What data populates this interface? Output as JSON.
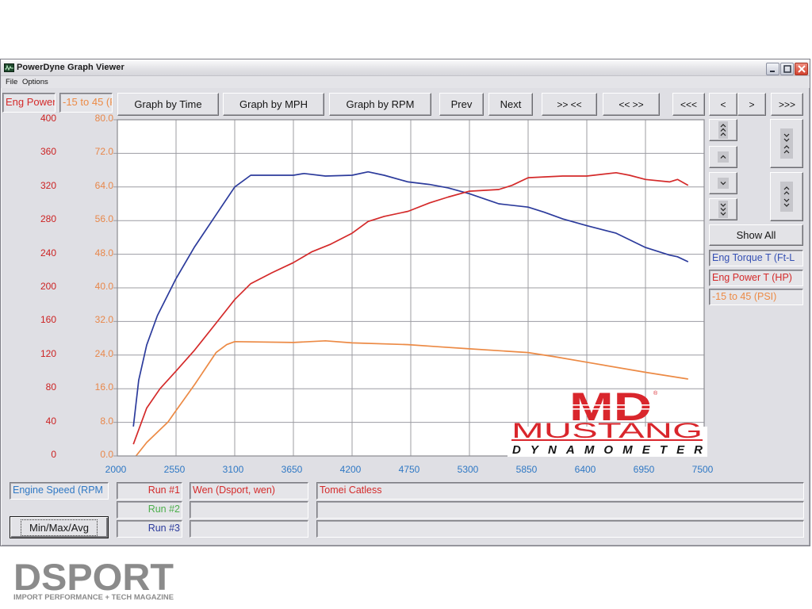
{
  "window": {
    "title": "PowerDyne Graph Viewer",
    "controls": {
      "minimize": "minimize",
      "maximize": "maximize",
      "close": "close"
    }
  },
  "menu": {
    "file": "File",
    "options": "Options"
  },
  "axis_selectors": {
    "left_channel": "Eng Power",
    "right_channel": "-15 to 45 (PSI)"
  },
  "toolbar": {
    "graph_by_time": "Graph by Time",
    "graph_by_mph": "Graph by MPH",
    "graph_by_rpm": "Graph by RPM",
    "prev": "Prev",
    "next": "Next",
    "zoom_in": ">> <<",
    "zoom_out": "<< >>",
    "scroll_first": "<<<",
    "scroll_left": "<",
    "scroll_right": ">",
    "scroll_last": ">>>"
  },
  "right_panel": {
    "show_all": "Show All",
    "legend": [
      {
        "label": "Eng Torque T (Ft-L",
        "color": "#3550b4"
      },
      {
        "label": "Eng Power T (HP)",
        "color": "#d42a2a"
      },
      {
        "label": "-15 to 45 (PSI)",
        "color": "#ec8a45"
      }
    ]
  },
  "bottom_panel": {
    "x_channel": "Engine Speed (RPM",
    "min_max_avg": "Min/Max/Avg",
    "runs": [
      {
        "label": "Run #1",
        "color": "#d42a2a",
        "name": "Wen (Dsport, wen)",
        "comment": "Tomei Catless"
      },
      {
        "label": "Run #2",
        "color": "#4cae4c",
        "name": "",
        "comment": ""
      },
      {
        "label": "Run #3",
        "color": "#2c3b9c",
        "name": "",
        "comment": ""
      }
    ]
  },
  "logos": {
    "dyno_brand": {
      "mark": "MD",
      "registered": "®",
      "name": "MUSTANG",
      "subtitle": "DYNAMOMETER"
    },
    "magazine": {
      "name": "DSPORT",
      "tagline": "IMPORT PERFORMANCE + TECH MAGAZINE"
    }
  },
  "colors": {
    "window_bg": "#dfdfe4",
    "plot_bg": "#ffffff",
    "grid": "#9c9ca2",
    "left_axis_text": "#cc2222",
    "right_axis_text": "#e8874a",
    "x_axis_text": "#2f78c4"
  },
  "chart_data": {
    "type": "line",
    "title": "",
    "xlabel": "Engine Speed (RPM)",
    "ylabel_left": "Eng Power / Eng Torque",
    "ylabel_right": "-15 to 45 (PSI)",
    "grid": true,
    "legend_position": "right",
    "x_axis": {
      "range": [
        2000,
        7500
      ],
      "ticks": [
        2000,
        2550,
        3100,
        3650,
        4200,
        4750,
        5300,
        5850,
        6400,
        6950,
        7500
      ]
    },
    "y_left": {
      "range": [
        0,
        400
      ],
      "ticks": [
        "0",
        "40",
        "80",
        "120",
        "160",
        "200",
        "240",
        "280",
        "320",
        "360",
        "400"
      ]
    },
    "y_right": {
      "range": [
        0,
        80
      ],
      "ticks": [
        "0.0",
        "8.0",
        "16.0",
        "24.0",
        "32.0",
        "40.0",
        "48.0",
        "56.0",
        "64.0",
        "72.0",
        "80.0"
      ]
    },
    "series": [
      {
        "id": "torque",
        "name": "Eng Torque T (Ft-Lb)",
        "color": "#2c3b9c",
        "axis": "left",
        "points": [
          [
            2150,
            35
          ],
          [
            2200,
            90
          ],
          [
            2275,
            132
          ],
          [
            2375,
            167
          ],
          [
            2550,
            211
          ],
          [
            2725,
            249
          ],
          [
            2925,
            287
          ],
          [
            3100,
            320
          ],
          [
            3250,
            334
          ],
          [
            3500,
            334
          ],
          [
            3650,
            334
          ],
          [
            3750,
            336
          ],
          [
            3950,
            333
          ],
          [
            4200,
            334
          ],
          [
            4350,
            338
          ],
          [
            4500,
            334
          ],
          [
            4725,
            326
          ],
          [
            4925,
            323
          ],
          [
            5100,
            319
          ],
          [
            5300,
            312
          ],
          [
            5575,
            300
          ],
          [
            5850,
            296
          ],
          [
            6000,
            290
          ],
          [
            6175,
            282
          ],
          [
            6400,
            274
          ],
          [
            6675,
            265
          ],
          [
            6950,
            248
          ],
          [
            7175,
            239
          ],
          [
            7250,
            237
          ],
          [
            7350,
            231
          ]
        ]
      },
      {
        "id": "power",
        "name": "Eng Power T (HP)",
        "color": "#d42a2a",
        "axis": "left",
        "points": [
          [
            2150,
            14
          ],
          [
            2275,
            57
          ],
          [
            2400,
            80
          ],
          [
            2550,
            101
          ],
          [
            2725,
            126
          ],
          [
            2925,
            158
          ],
          [
            3100,
            186
          ],
          [
            3250,
            205
          ],
          [
            3450,
            218
          ],
          [
            3650,
            230
          ],
          [
            3825,
            243
          ],
          [
            4000,
            252
          ],
          [
            4200,
            265
          ],
          [
            4350,
            279
          ],
          [
            4500,
            285
          ],
          [
            4725,
            291
          ],
          [
            4925,
            301
          ],
          [
            5100,
            308
          ],
          [
            5300,
            315
          ],
          [
            5575,
            317
          ],
          [
            5700,
            322
          ],
          [
            5850,
            331
          ],
          [
            6000,
            332
          ],
          [
            6175,
            333
          ],
          [
            6400,
            333
          ],
          [
            6675,
            337
          ],
          [
            6800,
            334
          ],
          [
            6950,
            329
          ],
          [
            7175,
            326
          ],
          [
            7250,
            329
          ],
          [
            7350,
            322
          ]
        ]
      },
      {
        "id": "boost",
        "name": "-15 to 45 (PSI)",
        "color": "#ec8a45",
        "axis": "right",
        "points": [
          [
            2175,
            0
          ],
          [
            2275,
            3.2
          ],
          [
            2475,
            8.1
          ],
          [
            2550,
            10.8
          ],
          [
            2725,
            17.0
          ],
          [
            2925,
            24.6
          ],
          [
            3025,
            26.5
          ],
          [
            3100,
            27.2
          ],
          [
            3650,
            27.0
          ],
          [
            3950,
            27.4
          ],
          [
            4200,
            26.9
          ],
          [
            4725,
            26.5
          ],
          [
            5000,
            26.0
          ],
          [
            5300,
            25.5
          ],
          [
            5850,
            24.6
          ],
          [
            6100,
            23.6
          ],
          [
            6400,
            22.3
          ],
          [
            6950,
            19.9
          ],
          [
            7350,
            18.3
          ]
        ]
      }
    ]
  }
}
